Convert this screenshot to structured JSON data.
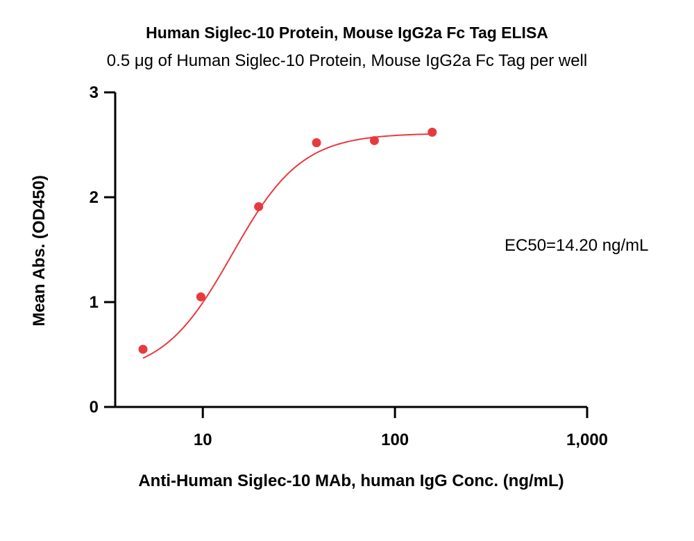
{
  "chart_data": {
    "type": "scatter",
    "title": "Human Siglec-10 Protein, Mouse IgG2a Fc Tag ELISA",
    "subtitle": "0.5 μg of Human Siglec-10 Protein, Mouse IgG2a Fc Tag per well",
    "xlabel": "Anti-Human Siglec-10 MAb, human IgG Conc. (ng/mL)",
    "ylabel": "Mean Abs. (OD450)",
    "x_scale": "log",
    "xlim": [
      3.5,
      1000
    ],
    "ylim": [
      0,
      3
    ],
    "x_ticks": [
      10,
      100,
      1000
    ],
    "x_tick_labels": [
      "10",
      "100",
      "1,000"
    ],
    "y_ticks": [
      0,
      1,
      2,
      3
    ],
    "y_tick_labels": [
      "0",
      "1",
      "2",
      "3"
    ],
    "series": [
      {
        "x": [
          4.883,
          9.766,
          19.53,
          39.06,
          78.13,
          156.25
        ],
        "y": [
          0.55,
          1.05,
          1.91,
          2.52,
          2.54,
          2.62
        ],
        "color": "#e8393f",
        "fit": {
          "model": "4PL",
          "bottom": 0.3,
          "top": 2.61,
          "ec50": 14.2,
          "hill": 2.4
        }
      }
    ],
    "annotation": "EC50=14.20 ng/mL",
    "grid": false
  }
}
